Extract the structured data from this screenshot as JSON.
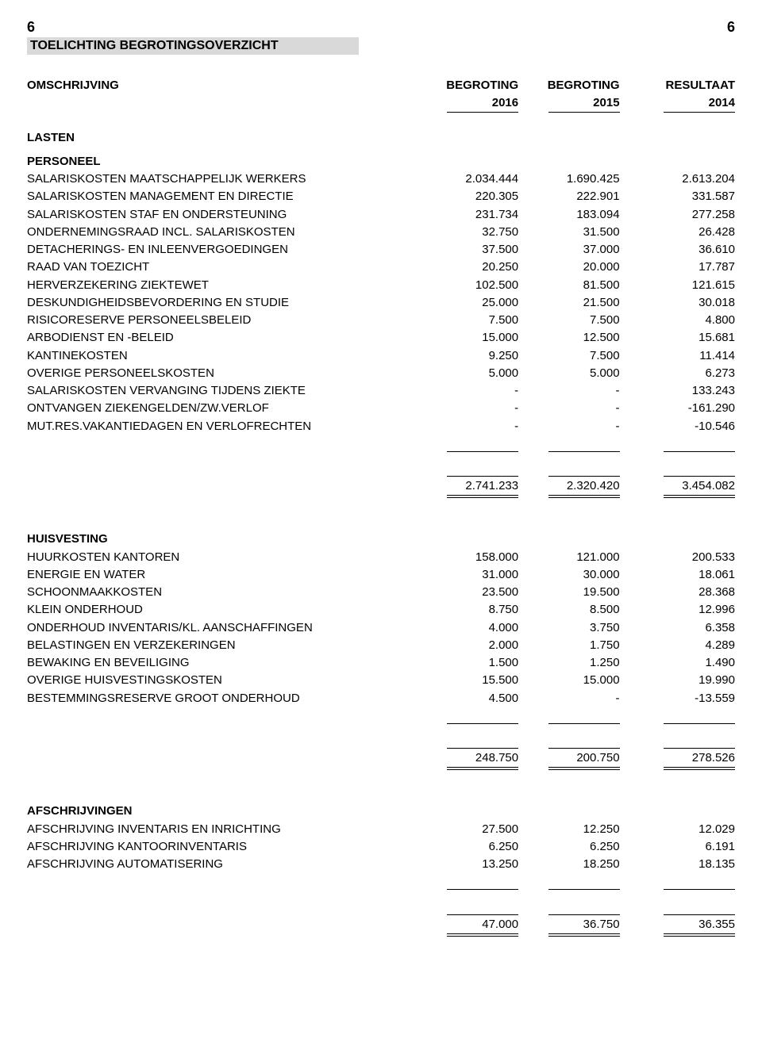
{
  "page_number": "6",
  "title": "TOELICHTING BEGROTINGSOVERZICHT",
  "columns": {
    "desc": "OMSCHRIJVING",
    "c1a": "BEGROTING",
    "c1b": "2016",
    "c2a": "BEGROTING",
    "c2b": "2015",
    "c3a": "RESULTAAT",
    "c3b": "2014"
  },
  "lasten_label": "LASTEN",
  "sections": [
    {
      "heading": "PERSONEEL",
      "rows": [
        {
          "d": "SALARISKOSTEN MAATSCHAPPELIJK WERKERS",
          "v": [
            "2.034.444",
            "1.690.425",
            "2.613.204"
          ]
        },
        {
          "d": "SALARISKOSTEN MANAGEMENT EN DIRECTIE",
          "v": [
            "220.305",
            "222.901",
            "331.587"
          ]
        },
        {
          "d": "SALARISKOSTEN STAF EN ONDERSTEUNING",
          "v": [
            "231.734",
            "183.094",
            "277.258"
          ]
        },
        {
          "d": "ONDERNEMINGSRAAD INCL. SALARISKOSTEN",
          "v": [
            "32.750",
            "31.500",
            "26.428"
          ]
        },
        {
          "d": "DETACHERINGS- EN INLEENVERGOEDINGEN",
          "v": [
            "37.500",
            "37.000",
            "36.610"
          ]
        },
        {
          "d": "RAAD VAN TOEZICHT",
          "v": [
            "20.250",
            "20.000",
            "17.787"
          ]
        },
        {
          "d": "HERVERZEKERING ZIEKTEWET",
          "v": [
            "102.500",
            "81.500",
            "121.615"
          ]
        },
        {
          "d": "DESKUNDIGHEIDSBEVORDERING EN STUDIE",
          "v": [
            "25.000",
            "21.500",
            "30.018"
          ]
        },
        {
          "d": "RISICORESERVE PERSONEELSBELEID",
          "v": [
            "7.500",
            "7.500",
            "4.800"
          ]
        },
        {
          "d": "ARBODIENST EN -BELEID",
          "v": [
            "15.000",
            "12.500",
            "15.681"
          ]
        },
        {
          "d": "KANTINEKOSTEN",
          "v": [
            "9.250",
            "7.500",
            "11.414"
          ]
        },
        {
          "d": "OVERIGE PERSONEELSKOSTEN",
          "v": [
            "5.000",
            "5.000",
            "6.273"
          ]
        },
        {
          "d": "SALARISKOSTEN VERVANGING TIJDENS ZIEKTE",
          "v": [
            "-",
            "-",
            "133.243"
          ]
        },
        {
          "d": "ONTVANGEN ZIEKENGELDEN/ZW.VERLOF",
          "v": [
            "-",
            "-",
            "-161.290"
          ]
        },
        {
          "d": "MUT.RES.VAKANTIEDAGEN EN VERLOFRECHTEN",
          "v": [
            "-",
            "-",
            "-10.546"
          ]
        }
      ],
      "total": [
        "2.741.233",
        "2.320.420",
        "3.454.082"
      ]
    },
    {
      "heading": "HUISVESTING",
      "rows": [
        {
          "d": "HUURKOSTEN KANTOREN",
          "v": [
            "158.000",
            "121.000",
            "200.533"
          ]
        },
        {
          "d": "ENERGIE EN WATER",
          "v": [
            "31.000",
            "30.000",
            "18.061"
          ]
        },
        {
          "d": "SCHOONMAAKKOSTEN",
          "v": [
            "23.500",
            "19.500",
            "28.368"
          ]
        },
        {
          "d": "KLEIN ONDERHOUD",
          "v": [
            "8.750",
            "8.500",
            "12.996"
          ]
        },
        {
          "d": "ONDERHOUD INVENTARIS/KL. AANSCHAFFINGEN",
          "v": [
            "4.000",
            "3.750",
            "6.358"
          ]
        },
        {
          "d": "BELASTINGEN EN VERZEKERINGEN",
          "v": [
            "2.000",
            "1.750",
            "4.289"
          ]
        },
        {
          "d": "BEWAKING EN BEVEILIGING",
          "v": [
            "1.500",
            "1.250",
            "1.490"
          ]
        },
        {
          "d": "OVERIGE HUISVESTINGSKOSTEN",
          "v": [
            "15.500",
            "15.000",
            "19.990"
          ]
        },
        {
          "d": "BESTEMMINGSRESERVE GROOT ONDERHOUD",
          "v": [
            "4.500",
            "-",
            "-13.559"
          ]
        }
      ],
      "total": [
        "248.750",
        "200.750",
        "278.526"
      ]
    },
    {
      "heading": "AFSCHRIJVINGEN",
      "rows": [
        {
          "d": "AFSCHRIJVING INVENTARIS EN INRICHTING",
          "v": [
            "27.500",
            "12.250",
            "12.029"
          ]
        },
        {
          "d": "AFSCHRIJVING KANTOORINVENTARIS",
          "v": [
            "6.250",
            "6.250",
            "6.191"
          ]
        },
        {
          "d": "AFSCHRIJVING AUTOMATISERING",
          "v": [
            "13.250",
            "18.250",
            "18.135"
          ]
        }
      ],
      "total": [
        "47.000",
        "36.750",
        "36.355"
      ]
    }
  ]
}
